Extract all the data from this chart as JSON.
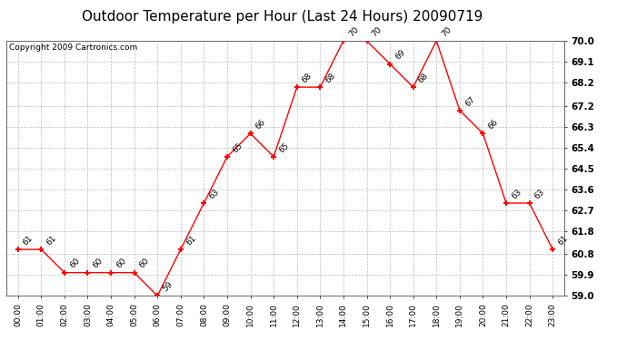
{
  "title": "Outdoor Temperature per Hour (Last 24 Hours) 20090719",
  "copyright": "Copyright 2009 Cartronics.com",
  "hours": [
    "00:00",
    "01:00",
    "02:00",
    "03:00",
    "04:00",
    "05:00",
    "06:00",
    "07:00",
    "08:00",
    "09:00",
    "10:00",
    "11:00",
    "12:00",
    "13:00",
    "14:00",
    "15:00",
    "16:00",
    "17:00",
    "18:00",
    "19:00",
    "20:00",
    "21:00",
    "22:00",
    "23:00"
  ],
  "temperatures": [
    61,
    61,
    60,
    60,
    60,
    60,
    59,
    61,
    63,
    65,
    66,
    65,
    68,
    68,
    70,
    70,
    69,
    68,
    70,
    67,
    66,
    63,
    63,
    61
  ],
  "ylim_min": 59.0,
  "ylim_max": 70.0,
  "yticks": [
    59.0,
    59.9,
    60.8,
    61.8,
    62.7,
    63.6,
    64.5,
    65.4,
    66.3,
    67.2,
    68.2,
    69.1,
    70.0
  ],
  "line_color": "red",
  "marker_color": "red",
  "marker": "+",
  "bg_color": "white",
  "grid_color": "#bbbbbb",
  "title_fontsize": 11,
  "label_fontsize": 6.5,
  "annot_fontsize": 6.5,
  "copyright_fontsize": 6.5,
  "ytick_fontsize": 7.5
}
